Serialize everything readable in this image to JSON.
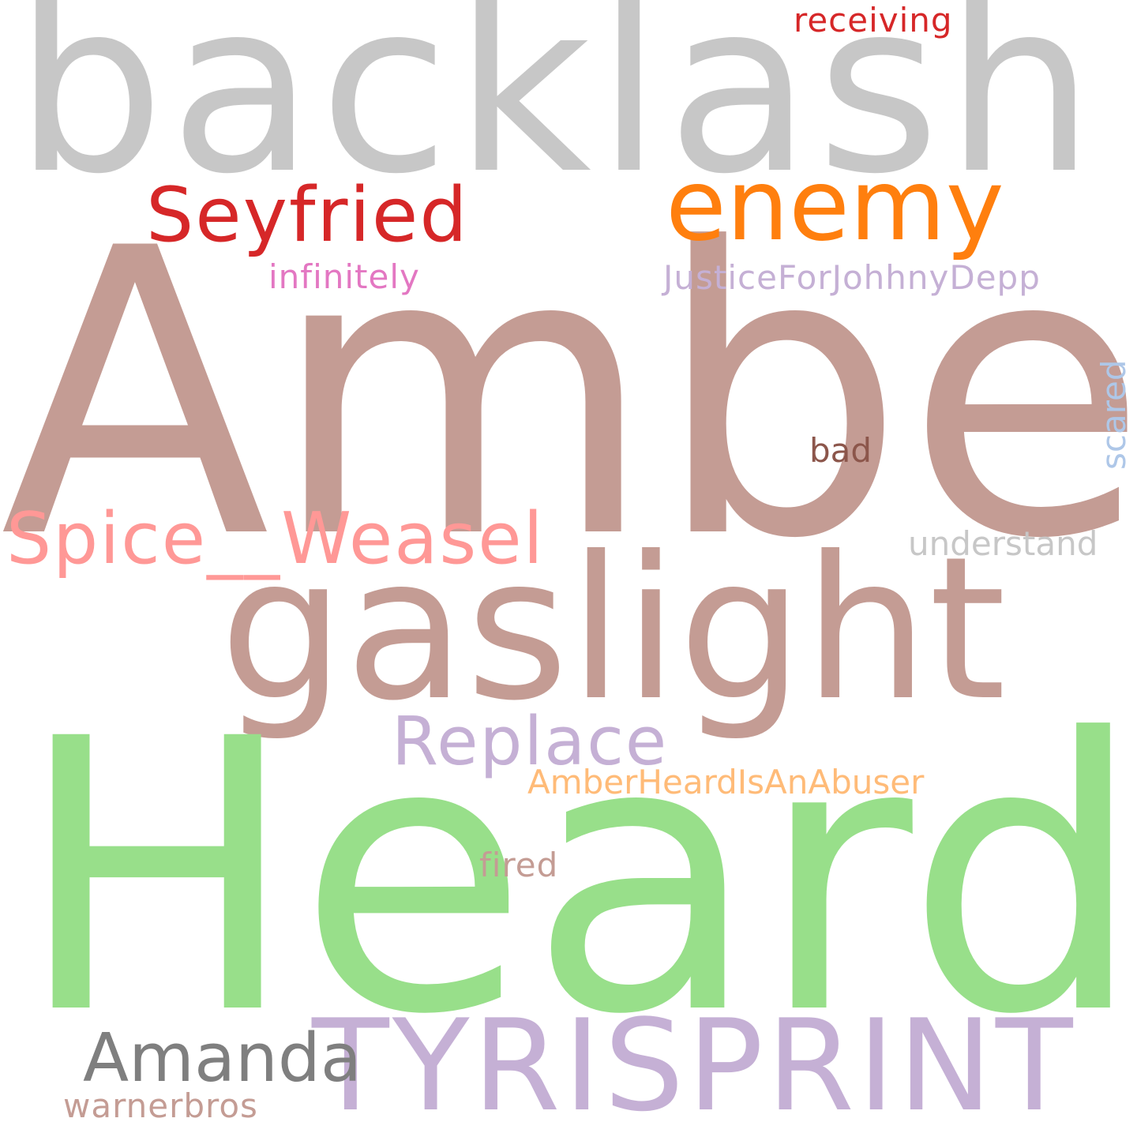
{
  "words": {
    "backlash": {
      "text": "backlash",
      "color": "#c7c7c7"
    },
    "amber": {
      "text": "Amber",
      "color": "#c49c94"
    },
    "heard": {
      "text": "Heard",
      "color": "#98df8a"
    },
    "gaslight": {
      "text": "gaslight",
      "color": "#c49c94"
    },
    "tyrisprint": {
      "text": "TYRISPRINT",
      "color": "#c5b0d5"
    },
    "enemy": {
      "text": "enemy",
      "color": "#ff7f0e"
    },
    "seyfried": {
      "text": "Seyfried",
      "color": "#d62728"
    },
    "spice": {
      "text": "Spice__Weasel",
      "color": "#ff9896"
    },
    "replace": {
      "text": "Replace",
      "color": "#c5b0d5"
    },
    "amanda": {
      "text": "Amanda",
      "color": "#7f7f7f"
    },
    "infinitely": {
      "text": "infinitely",
      "color": "#e377c2"
    },
    "justice": {
      "text": "JusticeForJohhnyDepp",
      "color": "#c5b0d5"
    },
    "receiving": {
      "text": "receiving",
      "color": "#d62728"
    },
    "understand": {
      "text": "understand",
      "color": "#c7c7c7"
    },
    "bad": {
      "text": "bad",
      "color": "#8c564b"
    },
    "abuser": {
      "text": "AmberHeardIsAnAbuser",
      "color": "#ffbb78"
    },
    "fired": {
      "text": "fired",
      "color": "#c49c94"
    },
    "warnerbros": {
      "text": "warnerbros",
      "color": "#c49c94"
    },
    "scared": {
      "text": "scared",
      "color": "#aec7e8"
    }
  }
}
